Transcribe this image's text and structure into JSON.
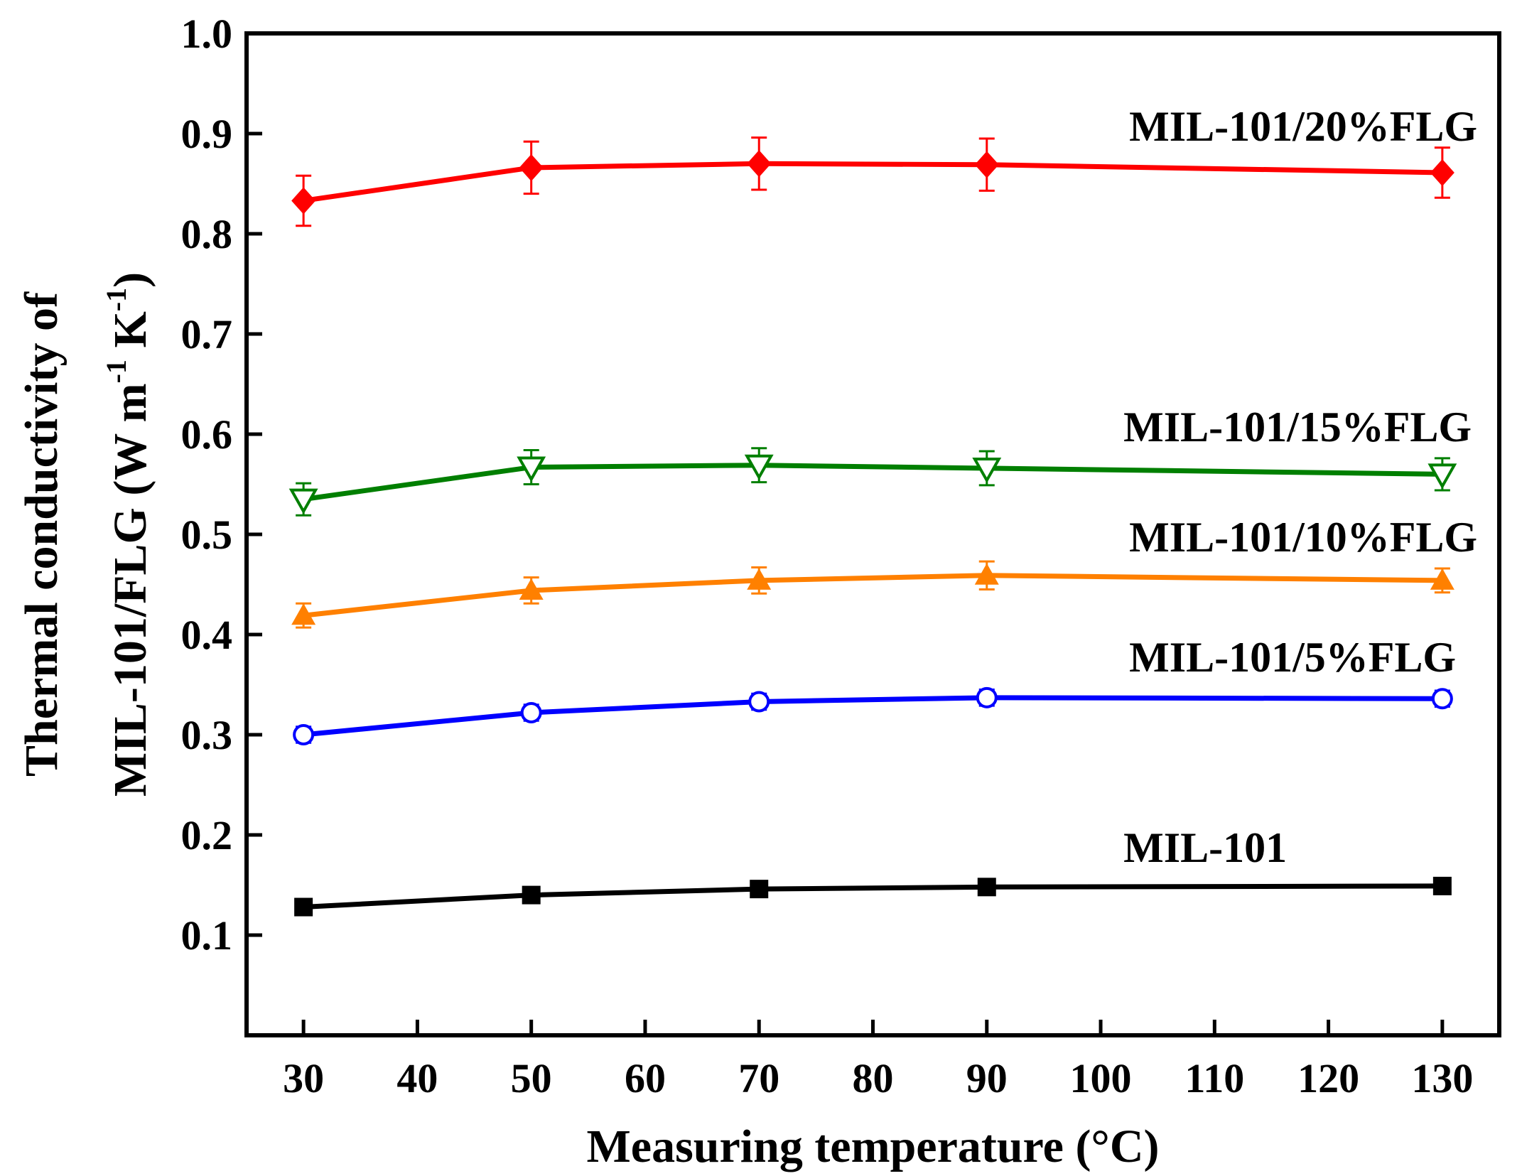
{
  "chart_data": {
    "type": "line",
    "xlabel": "Measuring temperature (°C)",
    "ylabel_line1": "Thermal conductivity of",
    "ylabel_line2_main": "MIL-101/FLG (W m",
    "ylabel_line2_sup1": "-1",
    "ylabel_line2_mid": " K",
    "ylabel_line2_sup2": "-1",
    "ylabel_line2_end": ")",
    "xlim": [
      25,
      135
    ],
    "ylim": [
      0.0,
      1.0
    ],
    "x_ticks": [
      30,
      40,
      50,
      60,
      70,
      80,
      90,
      100,
      110,
      120,
      130
    ],
    "x_tick_labels": [
      "30",
      "40",
      "50",
      "60",
      "70",
      "80",
      "90",
      "100",
      "110",
      "120",
      "130"
    ],
    "y_ticks": [
      0.1,
      0.2,
      0.3,
      0.4,
      0.5,
      0.6,
      0.7,
      0.8,
      0.9,
      1.0
    ],
    "y_tick_labels": [
      "0.1",
      "0.2",
      "0.3",
      "0.4",
      "0.5",
      "0.6",
      "0.7",
      "0.8",
      "0.9",
      "1.0"
    ],
    "x": [
      30,
      50,
      70,
      90,
      130
    ],
    "grid": false,
    "series": [
      {
        "name": "MIL-101",
        "color": "#000000",
        "marker": "square-filled",
        "values": [
          0.128,
          0.14,
          0.146,
          0.148,
          0.149
        ],
        "errors": [
          0,
          0,
          0,
          0,
          0
        ]
      },
      {
        "name": "MIL-101/5%FLG",
        "color": "#0000ff",
        "marker": "circle-open",
        "values": [
          0.3,
          0.322,
          0.333,
          0.337,
          0.336
        ],
        "errors": [
          0.008,
          0.008,
          0.008,
          0.008,
          0.008
        ]
      },
      {
        "name": "MIL-101/10%FLG",
        "color": "#ff8000",
        "marker": "triangle-up-filled",
        "values": [
          0.419,
          0.444,
          0.454,
          0.459,
          0.454
        ],
        "errors": [
          0.012,
          0.013,
          0.013,
          0.014,
          0.012
        ]
      },
      {
        "name": "MIL-101/15%FLG",
        "color": "#007f00",
        "marker": "triangle-down-open",
        "values": [
          0.535,
          0.567,
          0.569,
          0.566,
          0.56
        ],
        "errors": [
          0.016,
          0.017,
          0.017,
          0.017,
          0.016
        ]
      },
      {
        "name": "MIL-101/20%FLG",
        "color": "#ff0000",
        "marker": "diamond-filled",
        "values": [
          0.833,
          0.866,
          0.87,
          0.869,
          0.861
        ],
        "errors": [
          0.025,
          0.026,
          0.026,
          0.026,
          0.025
        ]
      }
    ],
    "annotations": [
      {
        "text": "MIL-101/20%FLG",
        "x": 102.5,
        "y": 0.893
      },
      {
        "text": "MIL-101/15%FLG",
        "x": 102,
        "y": 0.593
      },
      {
        "text": "MIL-101/10%FLG",
        "x": 102.5,
        "y": 0.483
      },
      {
        "text": "MIL-101/5%FLG",
        "x": 102.5,
        "y": 0.363
      },
      {
        "text": "MIL-101",
        "x": 102,
        "y": 0.173
      }
    ]
  }
}
